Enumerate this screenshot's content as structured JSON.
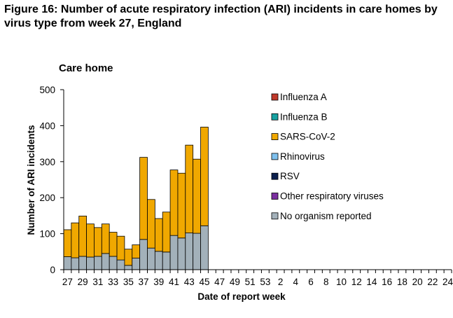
{
  "figure_title": "Figure 16: Number of acute respiratory infection (ARI) incidents in care homes by virus type from week 27, England",
  "chart_data": {
    "type": "bar",
    "stacked": true,
    "title": "Care home",
    "xlabel": "Date of report week",
    "ylabel": "Number of ARI incidents",
    "ylim": [
      0,
      500
    ],
    "yticks": [
      0,
      100,
      200,
      300,
      400,
      500
    ],
    "grid": false,
    "legend_position": "right",
    "categories": [
      "27",
      "28",
      "29",
      "30",
      "31",
      "32",
      "33",
      "34",
      "35",
      "36",
      "37",
      "38",
      "39",
      "40",
      "41",
      "42",
      "43",
      "44",
      "45",
      "46",
      "47",
      "48",
      "49",
      "50",
      "51",
      "52",
      "53",
      "1",
      "2",
      "3",
      "4",
      "5",
      "6",
      "7",
      "8",
      "9",
      "10",
      "11",
      "12",
      "13",
      "14",
      "15",
      "16",
      "17",
      "18",
      "19",
      "20",
      "21",
      "22",
      "23",
      "24"
    ],
    "tick_labels": [
      "27",
      "29",
      "31",
      "33",
      "35",
      "37",
      "39",
      "41",
      "43",
      "45",
      "47",
      "49",
      "51",
      "53",
      "2",
      "4",
      "6",
      "8",
      "10",
      "12",
      "14",
      "16",
      "18",
      "20",
      "22",
      "24"
    ],
    "series": [
      {
        "name": "Influenza A",
        "color": "#c0392b",
        "values": [
          0,
          0,
          0,
          0,
          0,
          0,
          0,
          0,
          0,
          0,
          0,
          0,
          0,
          0,
          0,
          0,
          0,
          0,
          0,
          null,
          null,
          null,
          null,
          null,
          null,
          null,
          null,
          null,
          null,
          null,
          null,
          null,
          null,
          null,
          null,
          null,
          null,
          null,
          null,
          null,
          null,
          null,
          null,
          null,
          null,
          null,
          null,
          null,
          null,
          null,
          null
        ]
      },
      {
        "name": "Influenza B",
        "color": "#17a2a2",
        "values": [
          0,
          0,
          0,
          0,
          0,
          0,
          0,
          0,
          0,
          0,
          0,
          0,
          0,
          0,
          0,
          0,
          0,
          0,
          0,
          null,
          null,
          null,
          null,
          null,
          null,
          null,
          null,
          null,
          null,
          null,
          null,
          null,
          null,
          null,
          null,
          null,
          null,
          null,
          null,
          null,
          null,
          null,
          null,
          null,
          null,
          null,
          null,
          null,
          null,
          null,
          null
        ]
      },
      {
        "name": "SARS-CoV-2",
        "color": "#f0a800",
        "values": [
          75,
          97,
          112,
          92,
          80,
          82,
          67,
          66,
          45,
          37,
          228,
          135,
          91,
          111,
          182,
          180,
          244,
          206,
          274,
          null,
          null,
          null,
          null,
          null,
          null,
          null,
          null,
          null,
          null,
          null,
          null,
          null,
          null,
          null,
          null,
          null,
          null,
          null,
          null,
          null,
          null,
          null,
          null,
          null,
          null,
          null,
          null,
          null,
          null,
          null,
          null
        ]
      },
      {
        "name": "Rhinovirus",
        "color": "#7ec0ee",
        "values": [
          0,
          0,
          0,
          0,
          0,
          0,
          0,
          0,
          0,
          0,
          0,
          0,
          0,
          0,
          0,
          0,
          0,
          0,
          0,
          null,
          null,
          null,
          null,
          null,
          null,
          null,
          null,
          null,
          null,
          null,
          null,
          null,
          null,
          null,
          null,
          null,
          null,
          null,
          null,
          null,
          null,
          null,
          null,
          null,
          null,
          null,
          null,
          null,
          null,
          null,
          null
        ]
      },
      {
        "name": "RSV",
        "color": "#0b1f4d",
        "values": [
          0,
          0,
          0,
          0,
          0,
          0,
          0,
          0,
          0,
          0,
          0,
          0,
          0,
          0,
          0,
          0,
          0,
          0,
          0,
          null,
          null,
          null,
          null,
          null,
          null,
          null,
          null,
          null,
          null,
          null,
          null,
          null,
          null,
          null,
          null,
          null,
          null,
          null,
          null,
          null,
          null,
          null,
          null,
          null,
          null,
          null,
          null,
          null,
          null,
          null,
          null
        ]
      },
      {
        "name": "Other respiratory viruses",
        "color": "#7b2fa0",
        "values": [
          0,
          0,
          0,
          0,
          0,
          0,
          0,
          0,
          0,
          0,
          0,
          0,
          0,
          0,
          0,
          0,
          0,
          0,
          0,
          null,
          null,
          null,
          null,
          null,
          null,
          null,
          null,
          null,
          null,
          null,
          null,
          null,
          null,
          null,
          null,
          null,
          null,
          null,
          null,
          null,
          null,
          null,
          null,
          null,
          null,
          null,
          null,
          null,
          null,
          null,
          null
        ]
      },
      {
        "name": "No organism reported",
        "color": "#a3b1ba",
        "values": [
          36,
          33,
          37,
          35,
          37,
          45,
          37,
          27,
          12,
          32,
          84,
          60,
          51,
          49,
          95,
          88,
          102,
          101,
          122,
          null,
          null,
          null,
          null,
          null,
          null,
          null,
          null,
          null,
          null,
          null,
          null,
          null,
          null,
          null,
          null,
          null,
          null,
          null,
          null,
          null,
          null,
          null,
          null,
          null,
          null,
          null,
          null,
          null,
          null,
          null,
          null
        ]
      }
    ]
  }
}
